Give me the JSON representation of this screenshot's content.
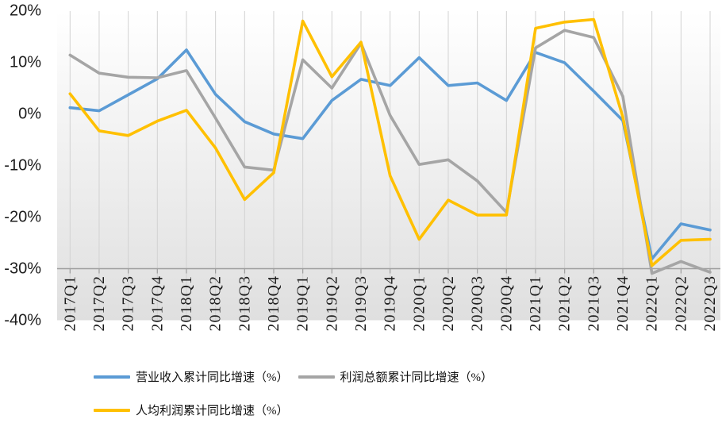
{
  "chart_data": {
    "type": "line",
    "title": "",
    "categories": [
      "2017Q1",
      "2017Q2",
      "2017Q3",
      "2017Q4",
      "2018Q1",
      "2018Q2",
      "2018Q3",
      "2018Q4",
      "2019Q1",
      "2019Q2",
      "2019Q3",
      "2019Q4",
      "2020Q1",
      "2020Q2",
      "2020Q3",
      "2020Q4",
      "2021Q1",
      "2021Q2",
      "2021Q3",
      "2021Q4",
      "2022Q1",
      "2022Q2",
      "2022Q3"
    ],
    "series": [
      {
        "name": "营业收入累计同比增速（%）",
        "color": "#5B9BD5",
        "values": [
          1.2,
          0.6,
          3.7,
          6.8,
          12.4,
          3.8,
          -1.5,
          -3.9,
          -4.8,
          2.6,
          6.7,
          5.5,
          10.9,
          5.5,
          6.0,
          2.6,
          11.9,
          9.9,
          4.4,
          -1.3,
          -28.1,
          -21.3,
          -22.5
        ]
      },
      {
        "name": "利润总额累计同比增速（%）",
        "color": "#A5A5A5",
        "values": [
          11.4,
          7.9,
          7.1,
          7.0,
          8.4,
          -0.8,
          -10.3,
          -10.9,
          10.5,
          5.0,
          13.7,
          -0.3,
          -9.8,
          -8.9,
          -13.0,
          -19.1,
          12.8,
          16.2,
          14.8,
          3.4,
          -30.9,
          -28.6,
          -30.7
        ]
      },
      {
        "name": "人均利润累计同比增速（%）",
        "color": "#FFC000",
        "values": [
          3.9,
          -3.3,
          -4.2,
          -1.4,
          0.7,
          -6.6,
          -16.6,
          -11.4,
          18.0,
          7.2,
          13.9,
          -12.0,
          -24.3,
          -16.7,
          -19.6,
          -19.6,
          16.6,
          17.8,
          18.3,
          -0.6,
          -29.4,
          -24.5,
          -24.3
        ]
      }
    ],
    "y_axis": {
      "min": -40,
      "max": 20,
      "step": 10,
      "tick_labels": [
        "20%",
        "10%",
        "0%",
        "-10%",
        "-20%",
        "-30%",
        "-40%"
      ],
      "axis_cross_value": -30
    },
    "x_axis": {
      "label_rotation_deg": 90
    },
    "grid": "vertical-only",
    "legend_position": "bottom-left",
    "colors": {
      "gridline": "#d2d2d2",
      "axis_line": "#9e9e9e",
      "plot_bg_top": "#ffffff",
      "plot_bg_bottom": "#dfdfdf",
      "text": "#1c1c1c"
    }
  }
}
